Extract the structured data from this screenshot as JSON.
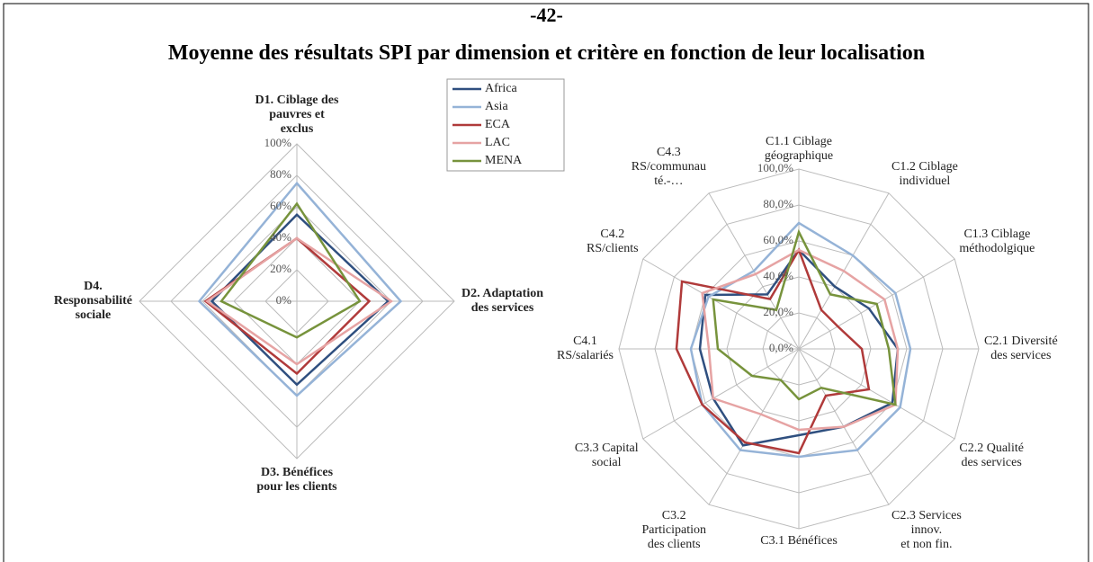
{
  "header": {
    "page_number": "-42-",
    "title": "Moyenne des résultats SPI par dimension et critère en fonction de leur localisation"
  },
  "chart_data": [
    {
      "type": "radar",
      "categories": [
        "D1. Ciblage des\npauvres et\nexclus",
        "D2. Adaptation\ndes services",
        "D3. Bénéfices\npour les clients",
        "D4.\nResponsabilité\nsociale"
      ],
      "ylim": [
        0,
        100
      ],
      "yticks": [
        {
          "value": 0,
          "label": "0%"
        },
        {
          "value": 20,
          "label": "20%"
        },
        {
          "value": 40,
          "label": "40%"
        },
        {
          "value": 60,
          "label": "60%"
        },
        {
          "value": 80,
          "label": "80%"
        },
        {
          "value": 100,
          "label": "100%"
        }
      ],
      "legend": "top-right",
      "series": [
        {
          "name": "Africa",
          "color": "#2f4f7f",
          "values": [
            55,
            58,
            53,
            54
          ]
        },
        {
          "name": "Asia",
          "color": "#95b3d7",
          "values": [
            75,
            66,
            60,
            62
          ]
        },
        {
          "name": "ECA",
          "color": "#b03a3a",
          "values": [
            40,
            46,
            46,
            58
          ]
        },
        {
          "name": "LAC",
          "color": "#e6a3a3",
          "values": [
            40,
            60,
            40,
            57
          ]
        },
        {
          "name": "MENA",
          "color": "#77933c",
          "values": [
            62,
            40,
            23,
            48
          ]
        }
      ]
    },
    {
      "type": "radar",
      "categories": [
        "C1.1 Ciblage\ngéographique",
        "C1.2 Ciblage\nindividuel",
        "C1.3 Ciblage\nméthodolgique",
        "C2.1 Diversité\ndes services",
        "C2.2 Qualité\ndes services",
        "C2.3 Services\ninnov.\net non fin.",
        "C3.1 Bénéfices",
        "C3.2\nParticipation\ndes clients",
        "C3.3 Capital\nsocial",
        "C4.1\nRS/salariés",
        "C4.2\nRS/clients",
        "C4.3\nRS/communau\nté.-…"
      ],
      "ylim": [
        0,
        100
      ],
      "yticks": [
        {
          "value": 0,
          "label": "0,0%"
        },
        {
          "value": 20,
          "label": "20,0%"
        },
        {
          "value": 40,
          "label": "40,0%"
        },
        {
          "value": 60,
          "label": "60,0%"
        },
        {
          "value": 80,
          "label": "80,0%"
        },
        {
          "value": 100,
          "label": "100,0%"
        }
      ],
      "series": [
        {
          "color": "#2f4f7f",
          "values": [
            55,
            40,
            45,
            55,
            60,
            50,
            48,
            62,
            55,
            55,
            60,
            35
          ]
        },
        {
          "color": "#95b3d7",
          "values": [
            70,
            60,
            62,
            62,
            65,
            65,
            60,
            65,
            62,
            60,
            58,
            50
          ]
        },
        {
          "color": "#b03a3a",
          "values": [
            55,
            25,
            25,
            35,
            45,
            30,
            58,
            60,
            62,
            68,
            75,
            32
          ]
        },
        {
          "color": "#e6a3a3",
          "values": [
            55,
            50,
            55,
            55,
            62,
            50,
            45,
            42,
            55,
            50,
            62,
            48
          ]
        },
        {
          "color": "#77933c",
          "values": [
            65,
            35,
            50,
            50,
            62,
            25,
            28,
            20,
            30,
            45,
            55,
            25
          ]
        }
      ]
    }
  ]
}
